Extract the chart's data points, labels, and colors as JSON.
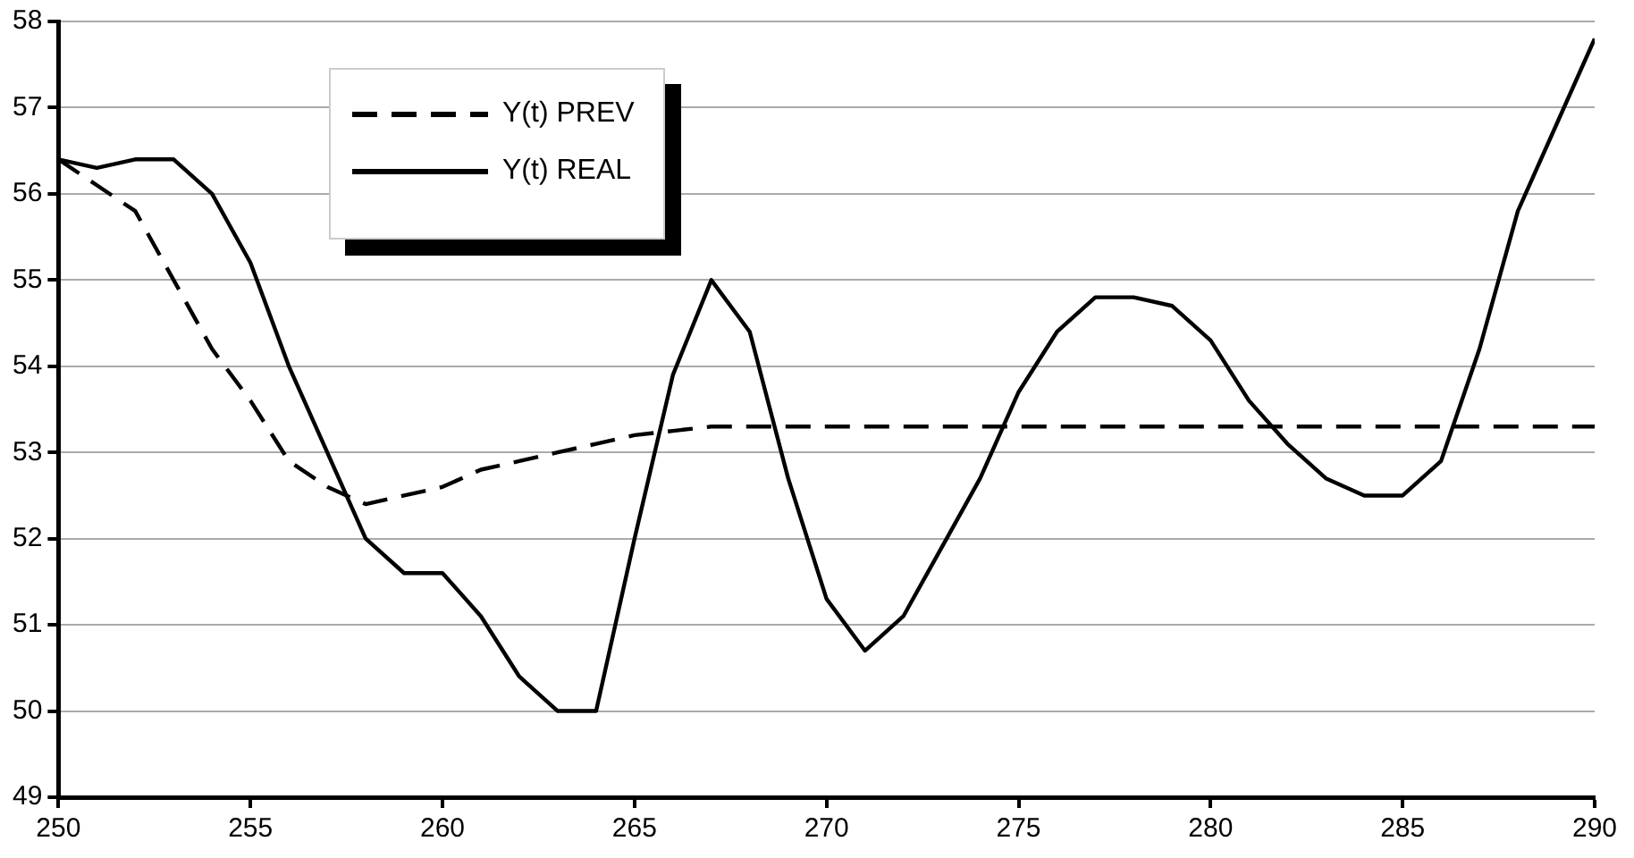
{
  "chart_data": {
    "type": "line",
    "x": [
      250,
      251,
      252,
      253,
      254,
      255,
      256,
      257,
      258,
      259,
      260,
      261,
      262,
      263,
      264,
      265,
      266,
      267,
      268,
      269,
      270,
      271,
      272,
      273,
      274,
      275,
      276,
      277,
      278,
      279,
      280,
      281,
      282,
      283,
      284,
      285,
      286,
      287,
      288,
      289,
      290
    ],
    "series": [
      {
        "name": "Y(t) PREV",
        "color": "#000000",
        "line_style": "dashed",
        "values": [
          56.4,
          56.1,
          55.8,
          55.0,
          54.2,
          53.6,
          52.9,
          52.6,
          52.4,
          52.5,
          52.6,
          52.8,
          52.9,
          53.0,
          53.1,
          53.2,
          53.25,
          53.3,
          53.3,
          53.3,
          53.3,
          53.3,
          53.3,
          53.3,
          53.3,
          53.3,
          53.3,
          53.3,
          53.3,
          53.3,
          53.3,
          53.3,
          53.3,
          53.3,
          53.3,
          53.3,
          53.3,
          53.3,
          53.3,
          53.3,
          53.3
        ]
      },
      {
        "name": "Y(t) REAL",
        "color": "#000000",
        "line_style": "solid",
        "values": [
          56.4,
          56.3,
          56.4,
          56.4,
          56.0,
          55.2,
          54.0,
          53.0,
          52.0,
          51.6,
          51.6,
          51.1,
          50.4,
          50.0,
          50.0,
          52.0,
          53.9,
          55.0,
          54.4,
          52.7,
          51.3,
          50.7,
          51.1,
          51.9,
          52.7,
          53.7,
          54.4,
          54.8,
          54.8,
          54.7,
          54.3,
          53.6,
          53.1,
          52.7,
          52.5,
          52.5,
          52.9,
          54.2,
          55.8,
          56.8,
          57.8
        ]
      }
    ],
    "xlim": [
      250,
      290
    ],
    "xticks": [
      250,
      255,
      260,
      265,
      270,
      275,
      280,
      285,
      290
    ],
    "ylim": [
      49,
      58
    ],
    "yticks": [
      49,
      50,
      51,
      52,
      53,
      54,
      55,
      56,
      57,
      58
    ],
    "grid": "y",
    "legend": "top left",
    "marker": "none"
  }
}
